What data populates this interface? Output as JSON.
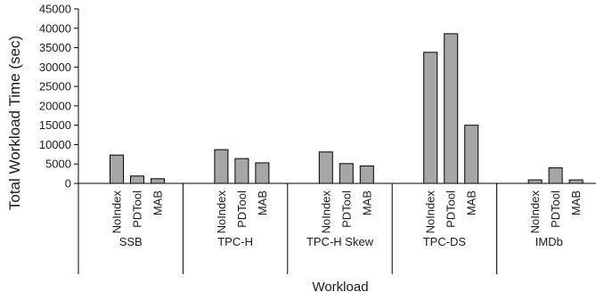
{
  "chart_data": {
    "type": "bar",
    "title": "",
    "ylabel": "Total Workload Time (sec)",
    "xlabel": "Workload",
    "ylim": [
      0,
      45000
    ],
    "yticks": [
      0,
      5000,
      10000,
      15000,
      20000,
      25000,
      30000,
      35000,
      40000,
      45000
    ],
    "grid": false,
    "legend": "none",
    "bar_color": "#a6a6a6",
    "groups": [
      {
        "name": "SSB",
        "categories": [
          "NoIndex",
          "PDTool",
          "MAB"
        ],
        "values": [
          7300,
          1900,
          1200
        ]
      },
      {
        "name": "TPC-H",
        "categories": [
          "NoIndex",
          "PDTool",
          "MAB"
        ],
        "values": [
          8700,
          6400,
          5300
        ]
      },
      {
        "name": "TPC-H Skew",
        "categories": [
          "NoIndex",
          "PDTool",
          "MAB"
        ],
        "values": [
          8100,
          5100,
          4500
        ]
      },
      {
        "name": "TPC-DS",
        "categories": [
          "NoIndex",
          "PDTool",
          "MAB"
        ],
        "values": [
          33800,
          38600,
          15000
        ]
      },
      {
        "name": "IMDb",
        "categories": [
          "NoIndex",
          "PDTool",
          "MAB"
        ],
        "values": [
          900,
          4000,
          900
        ]
      }
    ]
  }
}
